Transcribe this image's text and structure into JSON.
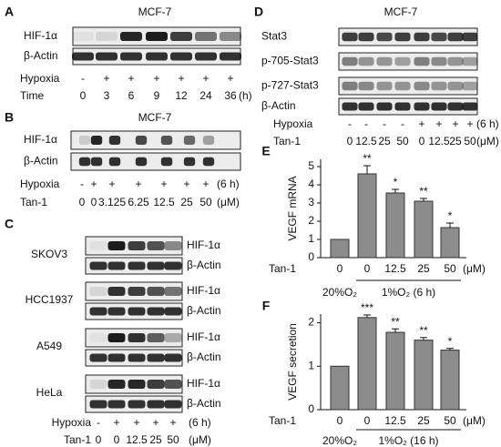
{
  "panels": {
    "A": {
      "label": "A",
      "title": "MCF-7",
      "rows": [
        "HIF-1α",
        "β-Actin"
      ],
      "conditions": [
        {
          "name": "Hypoxia",
          "values": [
            "-",
            "+",
            "+",
            "+",
            "+",
            "+",
            "+"
          ]
        },
        {
          "name": "Time",
          "values": [
            0,
            3,
            6,
            9,
            12,
            24,
            36
          ],
          "unit": "(h)"
        }
      ]
    },
    "B": {
      "label": "B",
      "title": "MCF-7",
      "rows": [
        "HIF-1α",
        "β-Actin"
      ],
      "conditions": [
        {
          "name": "Hypoxia",
          "values": [
            "-",
            "+",
            "+",
            "+",
            "+",
            "+",
            "+"
          ],
          "unit": "(6 h)"
        },
        {
          "name": "Tan-1",
          "values": [
            0,
            0,
            3.125,
            6.25,
            12.5,
            25,
            50
          ],
          "unit": "(μM)"
        }
      ]
    },
    "C": {
      "label": "C",
      "cells": [
        {
          "name": "SKOV3",
          "rows": [
            "HIF-1α",
            "β-Actin"
          ]
        },
        {
          "name": "HCC1937",
          "rows": [
            "HIF-1α",
            "β-Actin"
          ]
        },
        {
          "name": "A549",
          "rows": [
            "HIF-1α",
            "β-Actin"
          ]
        },
        {
          "name": "HeLa",
          "rows": [
            "HIF-1α",
            "β-Actin"
          ]
        }
      ],
      "conditions": [
        {
          "name": "Hypoxia",
          "values": [
            "-",
            "+",
            "+",
            "+",
            "+"
          ],
          "unit": "(6 h)"
        },
        {
          "name": "Tan-1",
          "values": [
            0,
            0,
            12.5,
            25,
            50
          ],
          "unit": "(μM)"
        }
      ]
    },
    "D": {
      "label": "D",
      "title": "MCF-7",
      "rows": [
        "Stat3",
        "p-705-Stat3",
        "p-727-Stat3",
        "β-Actin"
      ],
      "conditions": [
        {
          "name": "Hypoxia",
          "values": [
            "-",
            "-",
            "-",
            "-",
            "+",
            "+",
            "+",
            "+"
          ],
          "unit": "(6 h)"
        },
        {
          "name": "Tan-1",
          "values": [
            0,
            12.5,
            25,
            50,
            0,
            12.5,
            25,
            50
          ],
          "unit": "(μM)"
        }
      ]
    }
  },
  "chart_data": [
    {
      "type": "bar",
      "panel_label": "E",
      "ylabel": "VEGF mRNA",
      "xlabel": "Tan-1",
      "unit": "(μM)",
      "categories": [
        0,
        0,
        12.5,
        25,
        50
      ],
      "values": [
        1,
        4.6,
        3.55,
        3.1,
        1.65
      ],
      "errors": [
        0,
        0.45,
        0.2,
        0.15,
        0.25
      ],
      "significance": [
        null,
        "**",
        "*",
        "**",
        "*"
      ],
      "groups": [
        "20%O₂",
        "1%O₂ (6 h)"
      ],
      "color": "#8c8c8c",
      "ylim": [
        0,
        5.4
      ],
      "yticks": [
        0,
        1,
        2,
        3,
        4,
        5
      ]
    },
    {
      "type": "bar",
      "panel_label": "F",
      "ylabel": "VEGF secretion",
      "xlabel": "Tan-1",
      "unit": "(μM)",
      "categories": [
        0,
        0,
        12.5,
        25,
        50
      ],
      "values": [
        1,
        2.12,
        1.78,
        1.6,
        1.37
      ],
      "errors": [
        0,
        0.06,
        0.08,
        0.06,
        0.04
      ],
      "significance": [
        null,
        "***",
        "**",
        "**",
        "*"
      ],
      "groups": [
        "20%O₂",
        "1%O₂ (16 h)"
      ],
      "color": "#8c8c8c",
      "ylim": [
        0,
        2.2
      ],
      "yticks": [
        0,
        1,
        2
      ]
    }
  ]
}
